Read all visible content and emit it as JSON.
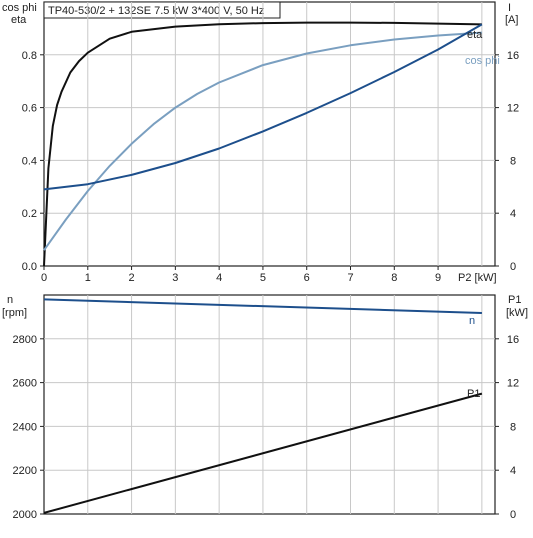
{
  "title": "TP40-530/2 + 132SE   7.5 kW   3*400 V, 50 Hz",
  "colors": {
    "eta": "#111111",
    "cos_phi": "#7a9fc0",
    "current": "#1d4f8c",
    "speed": "#1d4f8c",
    "power": "#111111"
  },
  "chart_data": [
    {
      "type": "line",
      "title": "TP40-530/2 + 132SE   7.5 kW   3*400 V, 50 Hz",
      "xlabel": "P2 [kW]",
      "ylabel_left": "cos phi\neta",
      "ylabel_right": "I\n[A]",
      "xlim": [
        0,
        10.3
      ],
      "ylim_left": [
        0,
        1.0
      ],
      "ylim_right": [
        0,
        20
      ],
      "x_ticks": [
        0,
        1,
        2,
        3,
        4,
        5,
        6,
        7,
        8,
        9
      ],
      "y_ticks_left": [
        "0.0",
        "0.2",
        "0.4",
        "0.6",
        "0.8"
      ],
      "y_ticks_right": [
        "0",
        "4",
        "8",
        "12",
        "16"
      ],
      "grid": true,
      "series": [
        {
          "name": "eta",
          "axis": "left",
          "x": [
            0,
            0.1,
            0.2,
            0.3,
            0.4,
            0.6,
            0.8,
            1.0,
            1.5,
            2.0,
            3.0,
            4.0,
            5.0,
            6.0,
            7.0,
            8.0,
            9.0,
            10.0
          ],
          "y": [
            0.0,
            0.37,
            0.53,
            0.61,
            0.66,
            0.733,
            0.776,
            0.808,
            0.861,
            0.887,
            0.907,
            0.916,
            0.92,
            0.922,
            0.922,
            0.921,
            0.918,
            0.915
          ]
        },
        {
          "name": "cos phi",
          "axis": "left",
          "x": [
            0,
            0.5,
            1.0,
            1.5,
            2.0,
            2.5,
            3.0,
            3.5,
            4.0,
            5.0,
            6.0,
            7.0,
            8.0,
            9.0,
            10.0
          ],
          "y": [
            0.06,
            0.176,
            0.284,
            0.379,
            0.463,
            0.537,
            0.6,
            0.652,
            0.695,
            0.761,
            0.805,
            0.836,
            0.858,
            0.873,
            0.884
          ]
        },
        {
          "name": "I",
          "axis": "right",
          "x": [
            0,
            1,
            2,
            3,
            4,
            5,
            6,
            7,
            8,
            9,
            10
          ],
          "y": [
            5.8,
            6.2,
            6.9,
            7.8,
            8.9,
            10.2,
            11.6,
            13.1,
            14.7,
            16.4,
            18.3
          ]
        }
      ]
    },
    {
      "type": "line",
      "xlim": [
        0,
        10.3
      ],
      "ylabel_left": "n\n[rpm]",
      "ylabel_right": "P1\n[kW]",
      "ylim_left": [
        2000,
        3000
      ],
      "ylim_right": [
        0,
        20
      ],
      "y_ticks_left": [
        "2000",
        "2200",
        "2400",
        "2600",
        "2800"
      ],
      "y_ticks_right": [
        "0",
        "4",
        "8",
        "12",
        "16"
      ],
      "grid": true,
      "series": [
        {
          "name": "n",
          "axis": "left",
          "x": [
            0,
            10.0
          ],
          "y": [
            2980,
            2918
          ]
        },
        {
          "name": "P1",
          "axis": "right",
          "x": [
            0,
            10.0
          ],
          "y": [
            0.1,
            11.0
          ]
        }
      ]
    }
  ]
}
